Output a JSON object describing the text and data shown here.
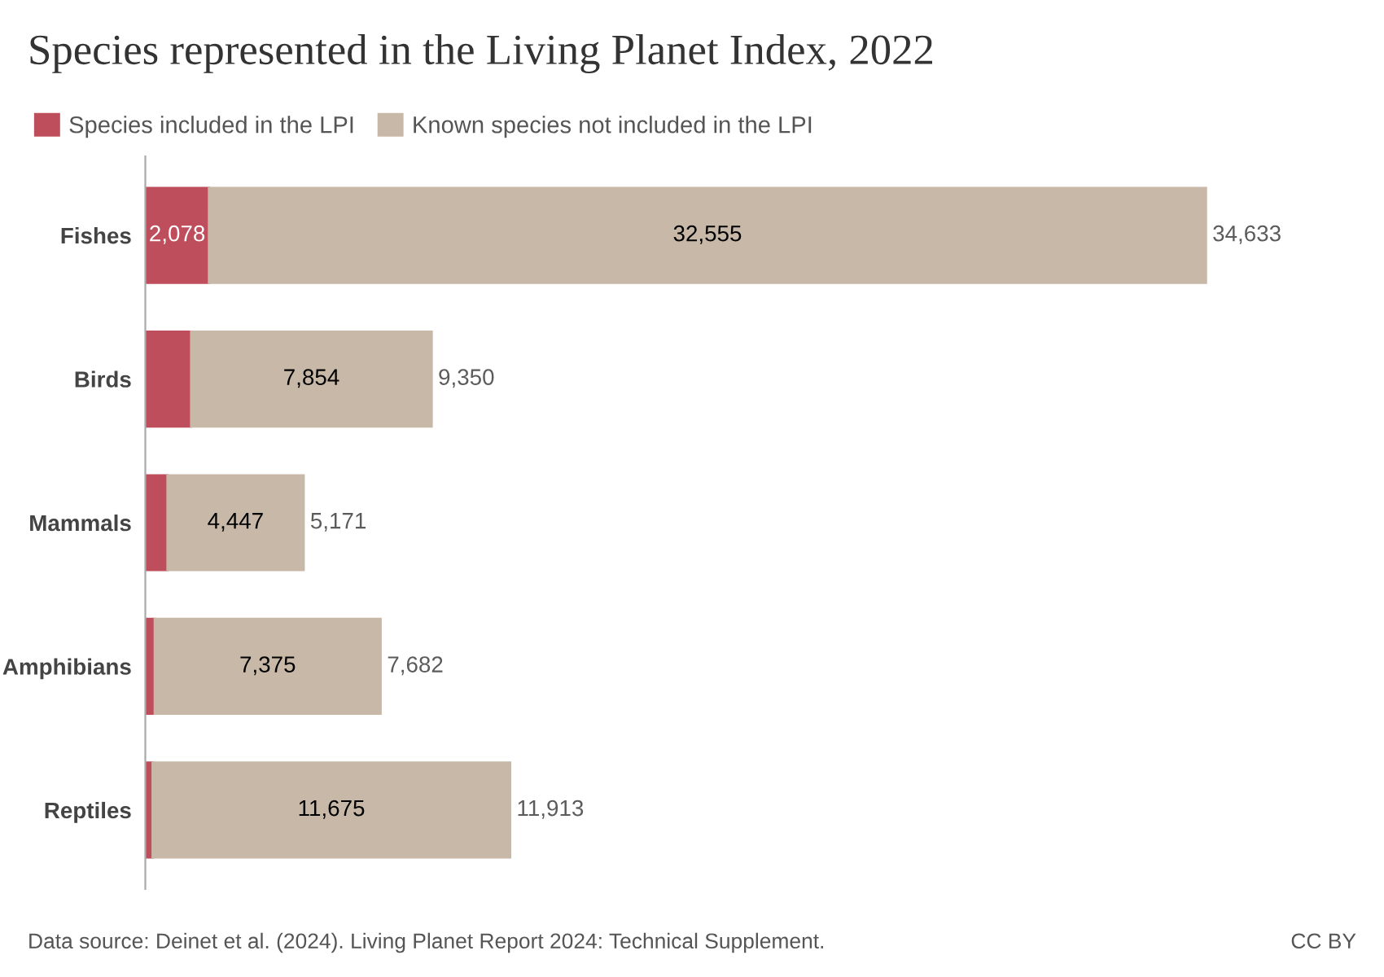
{
  "chart_data": {
    "type": "bar",
    "orientation": "horizontal",
    "stacked": true,
    "title": "Species represented in the Living Planet Index, 2022",
    "categories": [
      "Fishes",
      "Birds",
      "Mammals",
      "Amphibians",
      "Reptiles"
    ],
    "series": [
      {
        "name": "Species included in the LPI",
        "color": "#be4e5c",
        "values": [
          2078,
          1496,
          724,
          307,
          238
        ],
        "value_labels": [
          "2,078",
          null,
          null,
          null,
          null
        ]
      },
      {
        "name": "Known species not included in the LPI",
        "color": "#c8b8a7",
        "values": [
          32555,
          7854,
          4447,
          7375,
          11675
        ],
        "value_labels": [
          "32,555",
          "7,854",
          "4,447",
          "7,375",
          "11,675"
        ]
      }
    ],
    "totals": [
      "34,633",
      "9,350",
      "5,171",
      "7,682",
      "11,913"
    ],
    "legend": "top left",
    "grid": false,
    "annotations": [
      "Data source: Deinet et al. (2024). Living Planet Report 2024: Technical Supplement.",
      "CC BY"
    ]
  }
}
